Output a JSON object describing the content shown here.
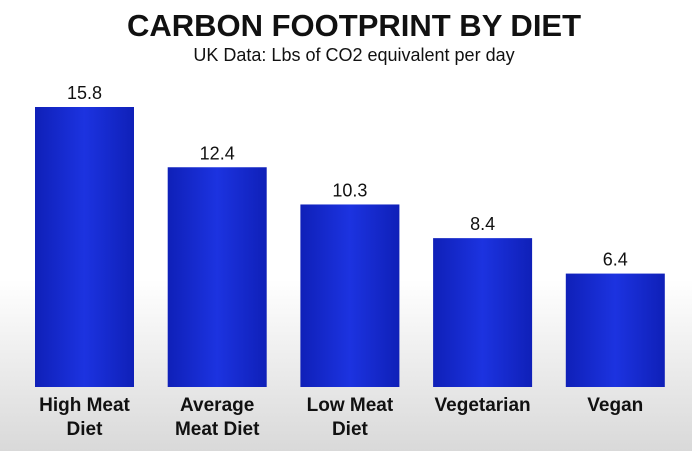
{
  "chart_data": {
    "type": "bar",
    "title": "CARBON FOOTPRINT BY DIET",
    "subtitle": "UK Data: Lbs of CO2 equivalent per day",
    "categories": [
      "High Meat Diet",
      "Average Meat Diet",
      "Low Meat Diet",
      "Vegetarian",
      "Vegan"
    ],
    "values": [
      15.8,
      12.4,
      10.3,
      8.4,
      6.4
    ],
    "color": "#1a2ed8"
  }
}
